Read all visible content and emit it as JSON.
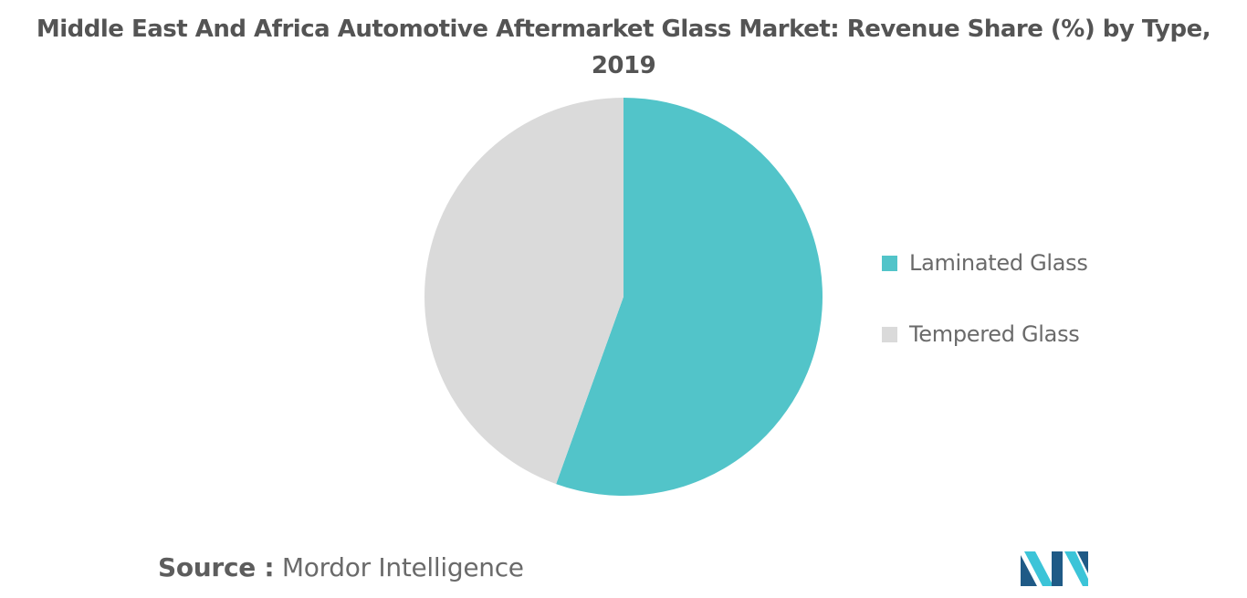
{
  "title": {
    "line1": "Middle East And Africa Automotive Aftermarket Glass Market: Revenue Share (%) by Type,",
    "line2": "2019"
  },
  "chart_data": {
    "type": "pie",
    "title": "Middle East And Africa Automotive Aftermarket Glass Market: Revenue Share (%) by Type, 2019",
    "categories": [
      "Laminated Glass",
      "Tempered Glass"
    ],
    "values": [
      55.5,
      44.5
    ],
    "colors": [
      "#52c4c9",
      "#dadada"
    ],
    "legend_position": "right",
    "start_angle": "12 o'clock",
    "direction": "clockwise"
  },
  "legend": {
    "items": [
      {
        "label": "Laminated Glass",
        "color": "#52c4c9"
      },
      {
        "label": "Tempered Glass",
        "color": "#dadada"
      }
    ]
  },
  "source": {
    "prefix": "Source :",
    "name": "Mordor Intelligence"
  },
  "logo": {
    "icon": "mordor-intelligence-logo",
    "colors": [
      "#1f5a86",
      "#3cc4d8"
    ]
  }
}
